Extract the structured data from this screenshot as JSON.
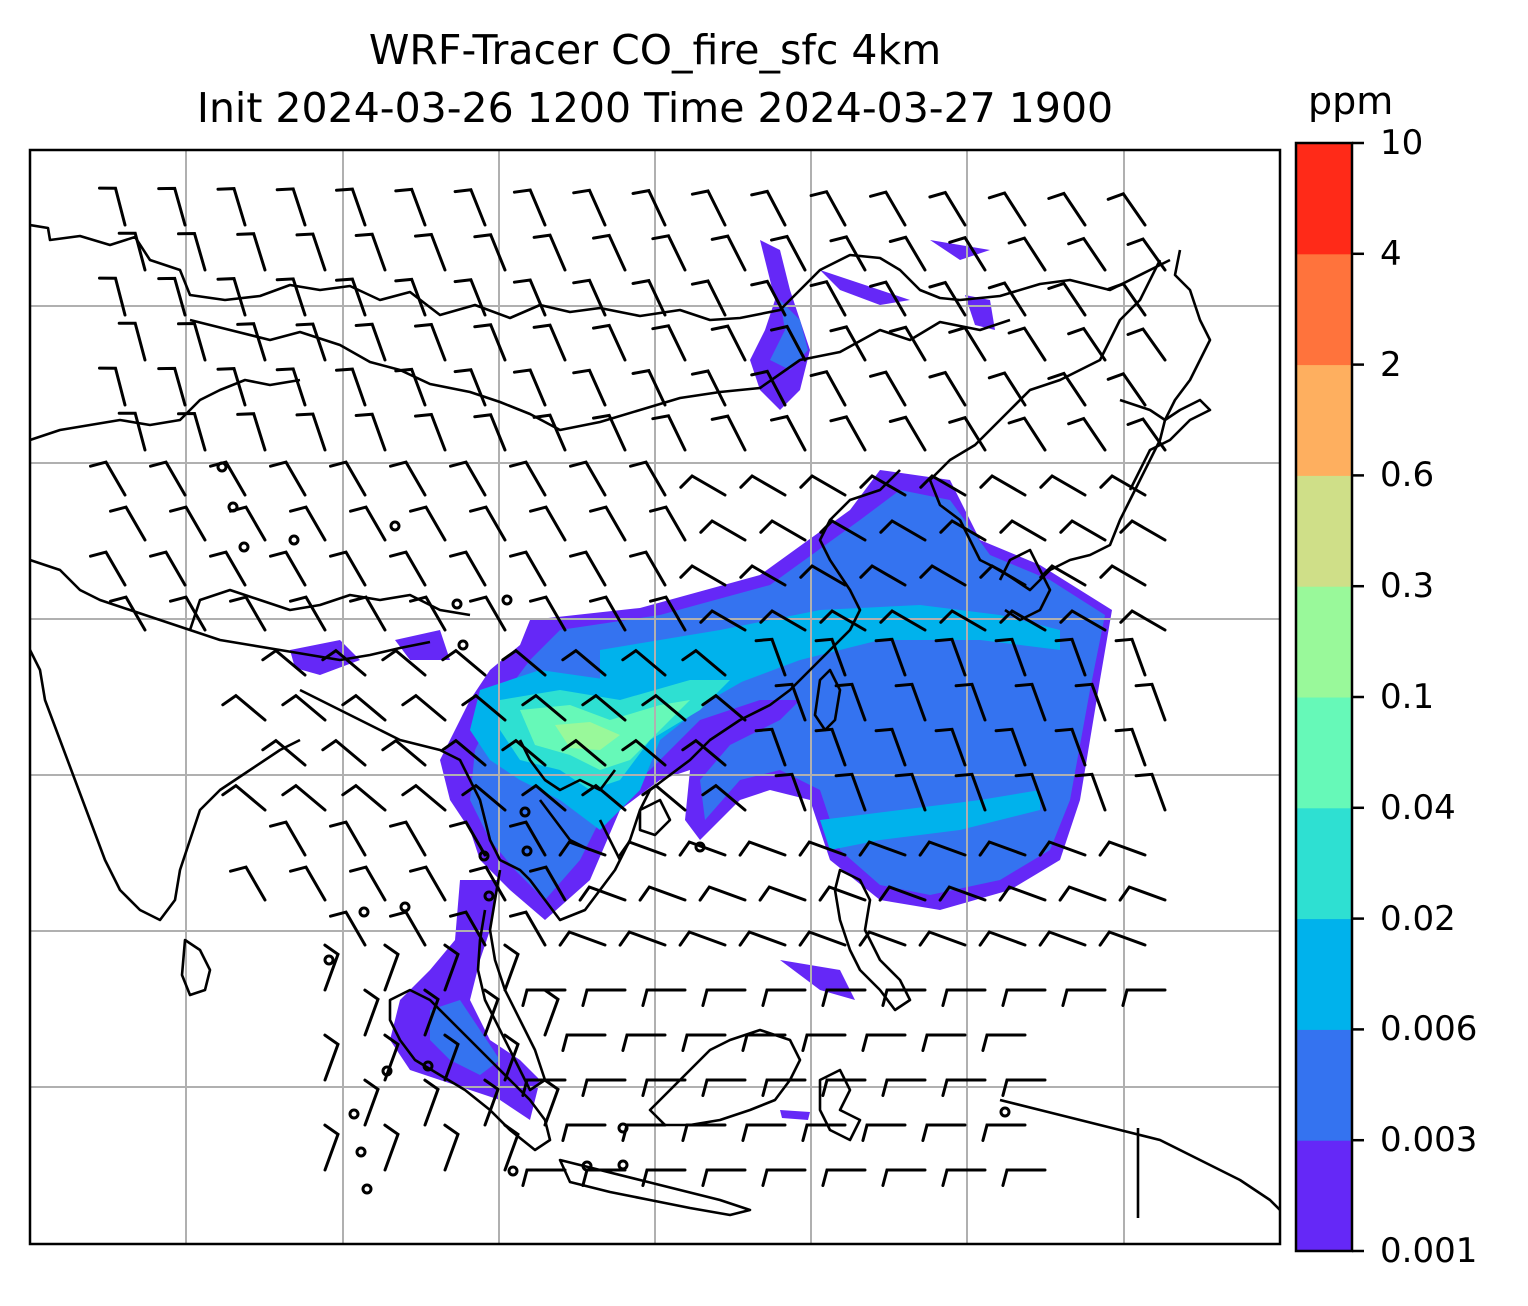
{
  "title": {
    "line1": "WRF-Tracer CO_fire_sfc 4km",
    "line2": "Init 2024-03-26 1200 Time 2024-03-27 1900"
  },
  "colorbar": {
    "unit": "ppm",
    "levels": [
      "0.001",
      "0.003",
      "0.006",
      "0.02",
      "0.04",
      "0.1",
      "0.3",
      "0.6",
      "2",
      "4",
      "10"
    ],
    "colors": [
      "#6528f7",
      "#3473f0",
      "#00b2ec",
      "#2ee0d2",
      "#66f9b8",
      "#99f99a",
      "#cfdf88",
      "#feaf5f",
      "#ff733c",
      "#ff2a18"
    ]
  },
  "map": {
    "gridlines": true,
    "land_outline_color": "#000000",
    "grid_color": "#b0b0b0",
    "wind_barbs": true,
    "calm_wind_markers": true
  }
}
